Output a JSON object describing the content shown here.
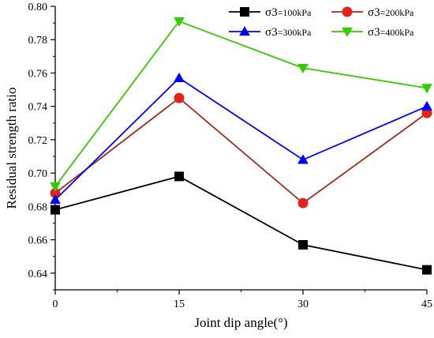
{
  "chart_data": {
    "type": "line",
    "xlabel": "Joint dip angle(°)",
    "ylabel": "Residual strength ratio",
    "x": [
      0,
      15,
      30,
      45
    ],
    "xticks": [
      "0",
      "15",
      "30",
      "45"
    ],
    "yticks": [
      "0.64",
      "0.66",
      "0.68",
      "0.70",
      "0.72",
      "0.74",
      "0.76",
      "0.78",
      "0.80"
    ],
    "xlim": [
      0,
      45
    ],
    "ylim": [
      0.63,
      0.8
    ],
    "grid": false,
    "legend_position": "top-right",
    "series": [
      {
        "name": "σ3=100kPa",
        "symbol": "σ",
        "subscript": "3",
        "suffix": "=100kPa",
        "values": [
          0.678,
          0.698,
          0.657,
          0.642
        ],
        "color": "#000000",
        "marker": "square"
      },
      {
        "name": "σ3=200kPa",
        "symbol": "σ",
        "subscript": "3",
        "suffix": "=200kPa",
        "values": [
          0.688,
          0.745,
          0.682,
          0.736
        ],
        "color": "#a52a1c",
        "marker": "circle",
        "marker_color": "#e3231b"
      },
      {
        "name": "σ3=300kPa",
        "symbol": "σ",
        "subscript": "3",
        "suffix": "=300kPa",
        "values": [
          0.684,
          0.757,
          0.708,
          0.74
        ],
        "color": "#0000ff",
        "marker": "triangle-up"
      },
      {
        "name": "σ3=400kPa",
        "symbol": "σ",
        "subscript": "3",
        "suffix": "=400kPa",
        "values": [
          0.692,
          0.791,
          0.763,
          0.751
        ],
        "color": "#33cc00",
        "marker": "triangle-down"
      }
    ]
  }
}
